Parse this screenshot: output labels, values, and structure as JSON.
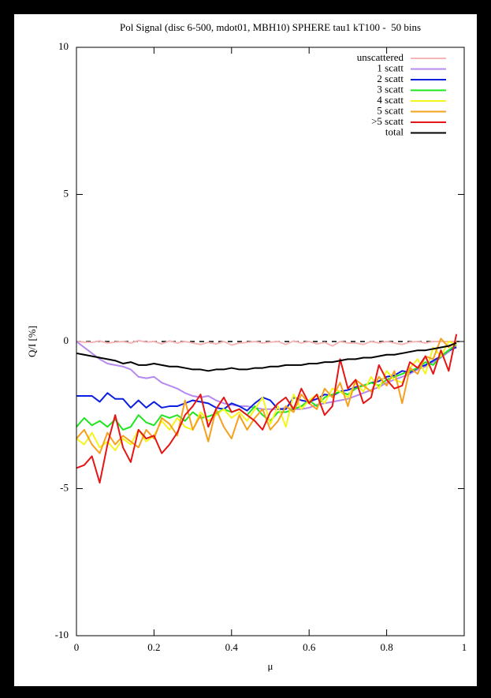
{
  "chart_data": {
    "type": "line",
    "title": "Pol Signal (disc 6-500, mdot01, MBH10) SPHERE tau1 kT100 -  50 bins",
    "x_label": "μ",
    "y_label": "Q/I [%]",
    "xlim": [
      0,
      1
    ],
    "ylim": [
      -10,
      10
    ],
    "xticks": [
      0,
      0.2,
      0.4,
      0.6,
      0.8,
      1
    ],
    "yticks": [
      -10,
      -5,
      0,
      5,
      10
    ],
    "zeroaxis": true,
    "legend": "top-right",
    "x": [
      0,
      0.02,
      0.04,
      0.06,
      0.08,
      0.1,
      0.12,
      0.14,
      0.16,
      0.18,
      0.2,
      0.22,
      0.24,
      0.26,
      0.28,
      0.3,
      0.32,
      0.34,
      0.36,
      0.38,
      0.4,
      0.42,
      0.44,
      0.46,
      0.48,
      0.5,
      0.52,
      0.54,
      0.56,
      0.58,
      0.6,
      0.62,
      0.64,
      0.66,
      0.68,
      0.7,
      0.72,
      0.74,
      0.76,
      0.78,
      0.8,
      0.82,
      0.84,
      0.86,
      0.88,
      0.9,
      0.92,
      0.94,
      0.96,
      0.98
    ],
    "series": [
      {
        "name": "unscattered",
        "color": "#f4b6b6",
        "values": [
          0,
          -0.02,
          -0.03,
          0.02,
          -0.05,
          -0.02,
          0,
          -0.05,
          0.03,
          -0.02,
          0,
          -0.08,
          0.02,
          -0.05,
          0,
          -0.05,
          -0.1,
          -0.03,
          -0.08,
          0,
          -0.12,
          -0.05,
          -0.03,
          0,
          -0.05,
          -0.02,
          0,
          -0.1,
          0.02,
          -0.05,
          0,
          -0.08,
          -0.03,
          -0.15,
          0,
          -0.05,
          -0.05,
          -0.1,
          0,
          -0.05,
          0,
          -0.05,
          -0.1,
          -0.02,
          0,
          -0.05,
          0,
          0,
          0,
          0
        ]
      },
      {
        "name": "1 scatt",
        "color": "#b589f0",
        "values": [
          0,
          -0.2,
          -0.4,
          -0.6,
          -0.75,
          -0.8,
          -0.85,
          -0.95,
          -1.2,
          -1.25,
          -1.2,
          -1.4,
          -1.5,
          -1.6,
          -1.75,
          -1.85,
          -1.9,
          -1.85,
          -2.0,
          -2.1,
          -2.15,
          -2.2,
          -2.2,
          -2.25,
          -2.3,
          -2.3,
          -2.3,
          -2.25,
          -2.3,
          -2.3,
          -2.25,
          -2.15,
          -2.1,
          -2.05,
          -2.0,
          -1.95,
          -1.85,
          -1.75,
          -1.65,
          -1.55,
          -1.4,
          -1.3,
          -1.2,
          -1.1,
          -0.95,
          -0.85,
          -0.7,
          -0.55,
          -0.35,
          -0.15
        ]
      },
      {
        "name": "2 scatt",
        "color": "#0a1ee0",
        "values": [
          -1.85,
          -1.85,
          -1.85,
          -2.05,
          -1.75,
          -1.95,
          -1.95,
          -2.25,
          -2.0,
          -2.25,
          -2.05,
          -2.25,
          -2.2,
          -2.2,
          -2.1,
          -2.0,
          -2.05,
          -2.1,
          -2.25,
          -2.3,
          -2.1,
          -2.2,
          -2.35,
          -2.1,
          -1.9,
          -2.0,
          -2.3,
          -2.3,
          -1.9,
          -2.0,
          -2.05,
          -1.95,
          -1.8,
          -1.85,
          -1.7,
          -1.65,
          -1.55,
          -1.5,
          -1.4,
          -1.35,
          -1.2,
          -1.15,
          -1.0,
          -1.05,
          -0.9,
          -0.8,
          -0.65,
          -0.5,
          -0.3,
          -0.2
        ]
      },
      {
        "name": "3 scatt",
        "color": "#1ee61e",
        "values": [
          -2.9,
          -2.6,
          -2.85,
          -2.7,
          -2.9,
          -2.65,
          -3.0,
          -2.9,
          -2.5,
          -2.75,
          -2.85,
          -2.5,
          -2.6,
          -2.5,
          -2.7,
          -2.4,
          -2.6,
          -2.55,
          -2.45,
          -2.3,
          -2.4,
          -2.3,
          -2.5,
          -2.2,
          -2.5,
          -2.7,
          -2.4,
          -2.4,
          -2.3,
          -2.2,
          -2.0,
          -2.2,
          -1.9,
          -1.8,
          -1.7,
          -1.8,
          -1.6,
          -1.5,
          -1.4,
          -1.5,
          -1.3,
          -1.2,
          -1.1,
          -1.0,
          -0.9,
          -0.7,
          -0.8,
          -0.5,
          -0.3,
          -0.1
        ]
      },
      {
        "name": "4 scatt",
        "color": "#f5f51e",
        "values": [
          -3.3,
          -3.5,
          -3.1,
          -3.6,
          -3.4,
          -3.7,
          -3.3,
          -3.5,
          -3.0,
          -3.4,
          -3.2,
          -2.7,
          -3.0,
          -2.6,
          -2.9,
          -3.0,
          -2.4,
          -2.7,
          -2.5,
          -2.3,
          -2.6,
          -2.4,
          -2.7,
          -2.3,
          -1.9,
          -2.8,
          -2.2,
          -2.9,
          -1.8,
          -2.3,
          -2.0,
          -1.8,
          -2.1,
          -1.6,
          -1.7,
          -1.9,
          -1.4,
          -1.7,
          -1.2,
          -1.6,
          -1.0,
          -1.3,
          -1.4,
          -0.9,
          -0.6,
          -1.1,
          -0.2,
          -0.5,
          0,
          -0.1
        ]
      },
      {
        "name": "5 scatt",
        "color": "#f5a01e",
        "values": [
          -3.3,
          -3.0,
          -3.5,
          -3.8,
          -3.1,
          -3.5,
          -3.2,
          -3.4,
          -3.6,
          -3.0,
          -3.3,
          -2.6,
          -2.8,
          -3.2,
          -2.0,
          -3.0,
          -2.5,
          -3.4,
          -2.3,
          -2.9,
          -3.3,
          -2.5,
          -3.0,
          -2.6,
          -2.3,
          -3.0,
          -2.7,
          -2.2,
          -2.4,
          -1.8,
          -2.1,
          -2.3,
          -1.6,
          -1.9,
          -1.4,
          -2.2,
          -1.3,
          -1.5,
          -1.7,
          -1.2,
          -1.5,
          -1.0,
          -2.1,
          -0.9,
          -1.1,
          -0.5,
          -0.6,
          0.1,
          -0.2,
          0
        ]
      },
      {
        "name": ">5 scatt",
        "color": "#e61414",
        "values": [
          -4.3,
          -4.2,
          -3.9,
          -4.8,
          -3.5,
          -2.5,
          -3.6,
          -4.1,
          -3.0,
          -3.3,
          -3.2,
          -3.8,
          -3.5,
          -3.1,
          -2.5,
          -2.2,
          -1.8,
          -2.9,
          -2.3,
          -1.9,
          -2.4,
          -2.3,
          -2.5,
          -2.7,
          -3.0,
          -2.4,
          -2.1,
          -1.9,
          -2.3,
          -1.6,
          -2.1,
          -1.8,
          -2.5,
          -2.2,
          -0.6,
          -1.6,
          -1.3,
          -2.1,
          -1.9,
          -0.8,
          -1.3,
          -1.6,
          -1.5,
          -0.7,
          -0.9,
          -0.5,
          -1.1,
          -0.3,
          -1.0,
          0.25
        ]
      },
      {
        "name": "total",
        "color": "#000000",
        "values": [
          -0.4,
          -0.45,
          -0.5,
          -0.55,
          -0.6,
          -0.65,
          -0.75,
          -0.7,
          -0.8,
          -0.8,
          -0.75,
          -0.8,
          -0.85,
          -0.85,
          -0.9,
          -0.95,
          -0.95,
          -1.0,
          -0.95,
          -0.95,
          -0.9,
          -0.95,
          -0.95,
          -0.9,
          -0.9,
          -0.85,
          -0.85,
          -0.8,
          -0.8,
          -0.8,
          -0.75,
          -0.75,
          -0.7,
          -0.7,
          -0.65,
          -0.6,
          -0.6,
          -0.55,
          -0.55,
          -0.5,
          -0.45,
          -0.45,
          -0.4,
          -0.35,
          -0.3,
          -0.3,
          -0.25,
          -0.2,
          -0.15,
          -0.05
        ]
      }
    ]
  }
}
